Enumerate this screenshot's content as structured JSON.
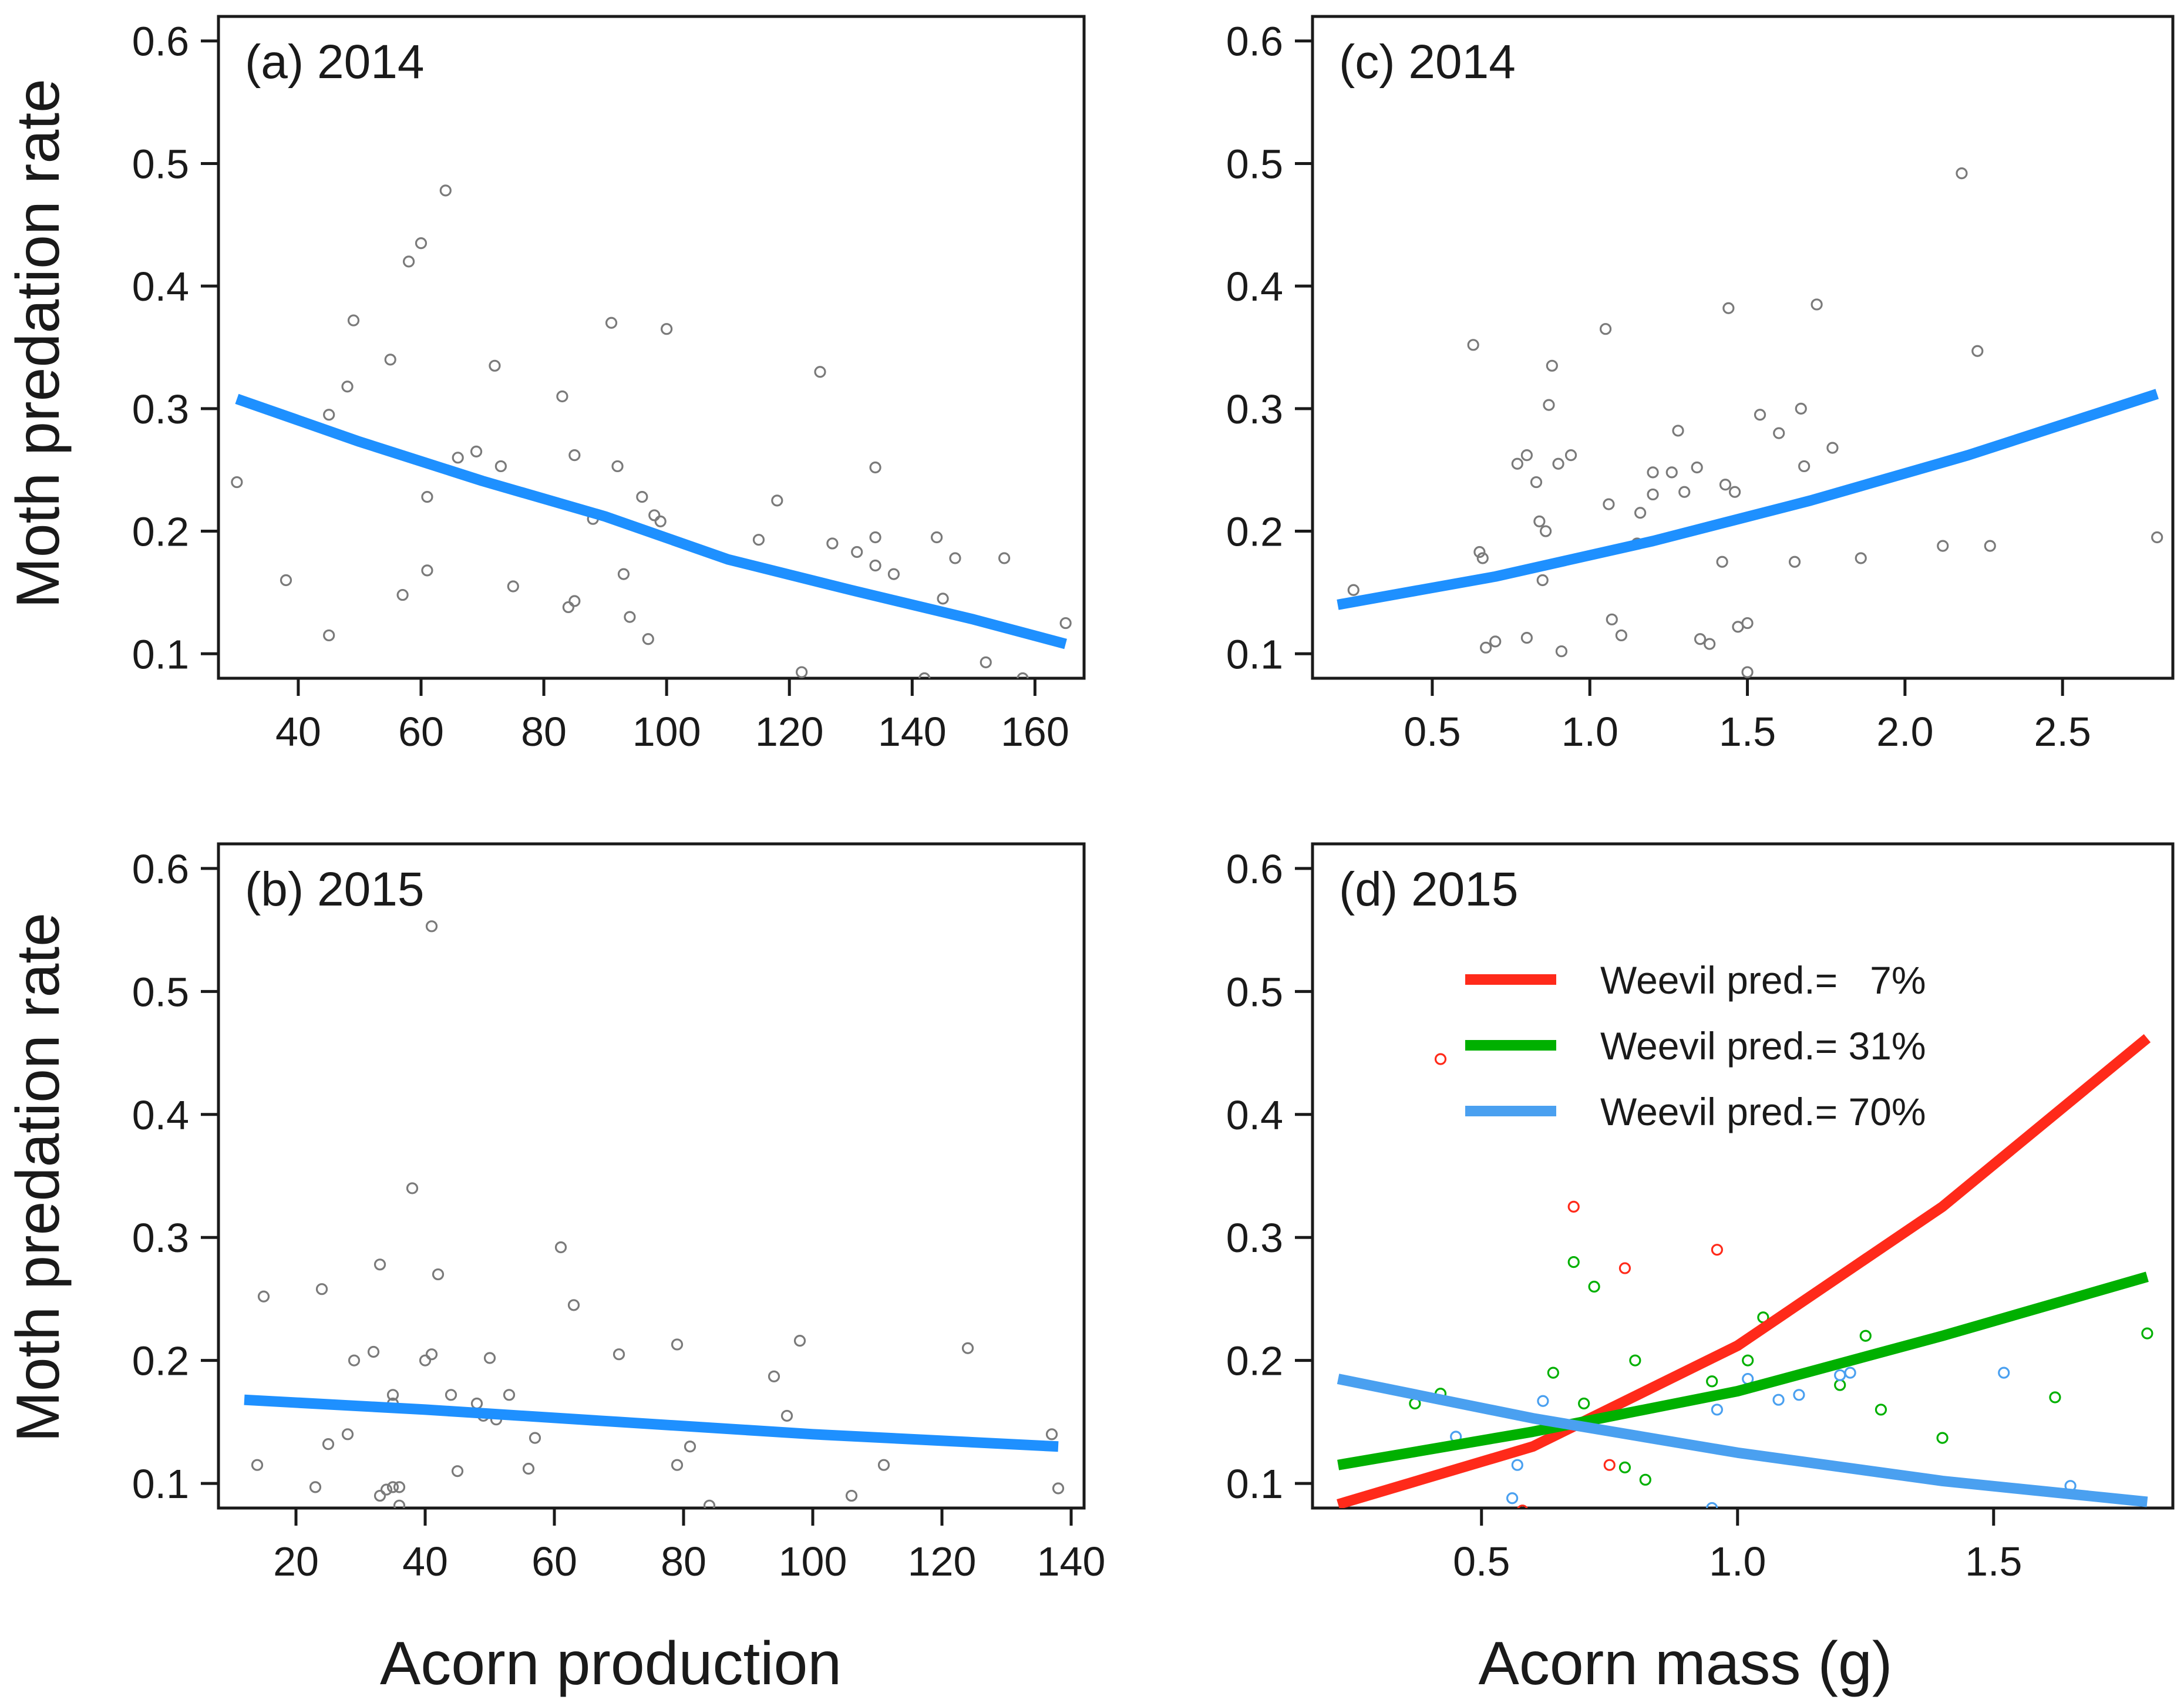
{
  "figure": {
    "shared_ylabel": "Moth predation rate",
    "xlabel_left": "Acorn production",
    "xlabel_right": "Acorn mass (g)"
  },
  "chart_data": [
    {
      "id": "a",
      "type": "scatter",
      "panel_label": "(a) 2014",
      "xlabel": "Acorn production",
      "ylabel": "Moth predation rate",
      "xlim": [
        27,
        168
      ],
      "ylim": [
        0.08,
        0.62
      ],
      "xticks": [
        40,
        60,
        80,
        100,
        120,
        140,
        160
      ],
      "yticks": [
        0.1,
        0.2,
        0.3,
        0.4,
        0.5,
        0.6
      ],
      "point_color": "#7a7a7a",
      "points": [
        [
          30,
          0.24
        ],
        [
          38,
          0.16
        ],
        [
          45,
          0.115
        ],
        [
          45,
          0.295
        ],
        [
          48,
          0.318
        ],
        [
          49,
          0.372
        ],
        [
          55,
          0.34
        ],
        [
          57,
          0.148
        ],
        [
          58,
          0.42
        ],
        [
          60,
          0.435
        ],
        [
          61,
          0.168
        ],
        [
          61,
          0.228
        ],
        [
          64,
          0.478
        ],
        [
          66,
          0.26
        ],
        [
          69,
          0.265
        ],
        [
          72,
          0.335
        ],
        [
          73,
          0.253
        ],
        [
          75,
          0.155
        ],
        [
          83,
          0.31
        ],
        [
          84,
          0.138
        ],
        [
          85,
          0.143
        ],
        [
          85,
          0.262
        ],
        [
          88,
          0.21
        ],
        [
          91,
          0.37
        ],
        [
          92,
          0.253
        ],
        [
          93,
          0.165
        ],
        [
          94,
          0.13
        ],
        [
          96,
          0.228
        ],
        [
          97,
          0.112
        ],
        [
          98,
          0.213
        ],
        [
          99,
          0.208
        ],
        [
          100,
          0.365
        ],
        [
          115,
          0.193
        ],
        [
          118,
          0.225
        ],
        [
          122,
          0.085
        ],
        [
          125,
          0.33
        ],
        [
          127,
          0.19
        ],
        [
          131,
          0.183
        ],
        [
          134,
          0.195
        ],
        [
          134,
          0.172
        ],
        [
          134,
          0.252
        ],
        [
          137,
          0.165
        ],
        [
          142,
          0.08
        ],
        [
          144,
          0.195
        ],
        [
          145,
          0.145
        ],
        [
          147,
          0.178
        ],
        [
          152,
          0.093
        ],
        [
          155,
          0.178
        ],
        [
          158,
          0.08
        ],
        [
          165,
          0.125
        ]
      ],
      "series": [
        {
          "line": [
            [
              30,
              0.308
            ],
            [
              50,
              0.273
            ],
            [
              70,
              0.241
            ],
            [
              90,
              0.212
            ],
            [
              110,
              0.177
            ],
            [
              130,
              0.152
            ],
            [
              150,
              0.128
            ],
            [
              165,
              0.108
            ]
          ],
          "color": "#1e90ff"
        }
      ]
    },
    {
      "id": "b",
      "type": "scatter",
      "panel_label": "(b) 2015",
      "xlabel": "Acorn production",
      "ylabel": "Moth predation rate",
      "xlim": [
        8,
        142
      ],
      "ylim": [
        0.08,
        0.62
      ],
      "xticks": [
        20,
        40,
        60,
        80,
        100,
        120,
        140
      ],
      "yticks": [
        0.1,
        0.2,
        0.3,
        0.4,
        0.5,
        0.6
      ],
      "point_color": "#7a7a7a",
      "points": [
        [
          14,
          0.115
        ],
        [
          15,
          0.252
        ],
        [
          23,
          0.097
        ],
        [
          24,
          0.258
        ],
        [
          25,
          0.132
        ],
        [
          28,
          0.14
        ],
        [
          29,
          0.2
        ],
        [
          32,
          0.207
        ],
        [
          33,
          0.278
        ],
        [
          33,
          0.09
        ],
        [
          34,
          0.095
        ],
        [
          35,
          0.172
        ],
        [
          35,
          0.165
        ],
        [
          35,
          0.097
        ],
        [
          36,
          0.097
        ],
        [
          36,
          0.082
        ],
        [
          38,
          0.34
        ],
        [
          40,
          0.2
        ],
        [
          41,
          0.205
        ],
        [
          41,
          0.553
        ],
        [
          42,
          0.27
        ],
        [
          44,
          0.172
        ],
        [
          45,
          0.11
        ],
        [
          48,
          0.165
        ],
        [
          49,
          0.155
        ],
        [
          50,
          0.202
        ],
        [
          51,
          0.152
        ],
        [
          53,
          0.172
        ],
        [
          56,
          0.112
        ],
        [
          57,
          0.137
        ],
        [
          61,
          0.292
        ],
        [
          63,
          0.245
        ],
        [
          70,
          0.205
        ],
        [
          79,
          0.213
        ],
        [
          79,
          0.115
        ],
        [
          81,
          0.13
        ],
        [
          84,
          0.082
        ],
        [
          94,
          0.187
        ],
        [
          96,
          0.155
        ],
        [
          98,
          0.216
        ],
        [
          106,
          0.09
        ],
        [
          111,
          0.115
        ],
        [
          124,
          0.21
        ],
        [
          137,
          0.14
        ],
        [
          138,
          0.096
        ]
      ],
      "series": [
        {
          "line": [
            [
              12,
              0.168
            ],
            [
              40,
              0.16
            ],
            [
              70,
              0.15
            ],
            [
              100,
              0.14
            ],
            [
              138,
              0.13
            ]
          ],
          "color": "#1e90ff"
        }
      ]
    },
    {
      "id": "c",
      "type": "scatter",
      "panel_label": "(c) 2014",
      "xlabel": "Acorn mass (g)",
      "ylabel": "Moth predation rate",
      "xlim": [
        0.12,
        2.85
      ],
      "ylim": [
        0.08,
        0.62
      ],
      "xticks": [
        "0.5",
        "1.0",
        "1.5",
        "2.0",
        "2.5"
      ],
      "yticks": [
        0.1,
        0.2,
        0.3,
        0.4,
        0.5,
        0.6
      ],
      "point_color": "#7a7a7a",
      "points": [
        [
          0.25,
          0.152
        ],
        [
          0.63,
          0.352
        ],
        [
          0.65,
          0.183
        ],
        [
          0.66,
          0.178
        ],
        [
          0.67,
          0.105
        ],
        [
          0.7,
          0.11
        ],
        [
          0.77,
          0.255
        ],
        [
          0.8,
          0.262
        ],
        [
          0.8,
          0.113
        ],
        [
          0.83,
          0.24
        ],
        [
          0.84,
          0.208
        ],
        [
          0.85,
          0.16
        ],
        [
          0.86,
          0.2
        ],
        [
          0.87,
          0.303
        ],
        [
          0.88,
          0.335
        ],
        [
          0.9,
          0.255
        ],
        [
          0.91,
          0.102
        ],
        [
          0.94,
          0.262
        ],
        [
          1.05,
          0.365
        ],
        [
          1.06,
          0.222
        ],
        [
          1.07,
          0.128
        ],
        [
          1.1,
          0.115
        ],
        [
          1.15,
          0.19
        ],
        [
          1.16,
          0.215
        ],
        [
          1.2,
          0.248
        ],
        [
          1.2,
          0.23
        ],
        [
          1.26,
          0.248
        ],
        [
          1.28,
          0.282
        ],
        [
          1.3,
          0.232
        ],
        [
          1.34,
          0.252
        ],
        [
          1.35,
          0.112
        ],
        [
          1.38,
          0.108
        ],
        [
          1.42,
          0.175
        ],
        [
          1.43,
          0.238
        ],
        [
          1.44,
          0.382
        ],
        [
          1.46,
          0.232
        ],
        [
          1.47,
          0.122
        ],
        [
          1.5,
          0.125
        ],
        [
          1.5,
          0.085
        ],
        [
          1.54,
          0.295
        ],
        [
          1.6,
          0.28
        ],
        [
          1.65,
          0.175
        ],
        [
          1.67,
          0.3
        ],
        [
          1.68,
          0.253
        ],
        [
          1.72,
          0.385
        ],
        [
          1.77,
          0.268
        ],
        [
          1.86,
          0.178
        ],
        [
          2.12,
          0.188
        ],
        [
          2.18,
          0.492
        ],
        [
          2.23,
          0.347
        ],
        [
          2.27,
          0.188
        ],
        [
          2.8,
          0.195
        ]
      ],
      "series": [
        {
          "line": [
            [
              0.2,
              0.14
            ],
            [
              0.7,
              0.163
            ],
            [
              1.2,
              0.192
            ],
            [
              1.7,
              0.225
            ],
            [
              2.2,
              0.262
            ],
            [
              2.8,
              0.312
            ]
          ],
          "color": "#1e90ff"
        }
      ]
    },
    {
      "id": "d",
      "type": "scatter",
      "panel_label": "(d) 2015",
      "xlabel": "Acorn mass (g)",
      "ylabel": "Moth predation rate",
      "xlim": [
        0.17,
        1.85
      ],
      "ylim": [
        0.08,
        0.62
      ],
      "xticks": [
        "0.5",
        "1.0",
        "1.5"
      ],
      "yticks": [
        0.1,
        0.2,
        0.3,
        0.4,
        0.5,
        0.6
      ],
      "legend_placement": "top",
      "series": [
        {
          "name": "Weevil pred.=   7%",
          "color": "#ff2a1a",
          "line": [
            [
              0.22,
              0.083
            ],
            [
              0.6,
              0.13
            ],
            [
              1.0,
              0.212
            ],
            [
              1.4,
              0.325
            ],
            [
              1.8,
              0.462
            ]
          ],
          "points": [
            [
              0.42,
              0.445
            ],
            [
              0.68,
              0.325
            ],
            [
              0.78,
              0.275
            ],
            [
              0.75,
              0.115
            ],
            [
              0.96,
              0.29
            ],
            [
              0.58,
              0.078
            ]
          ]
        },
        {
          "name": "Weevil pred.= 31%",
          "color": "#00b000",
          "line": [
            [
              0.22,
              0.115
            ],
            [
              0.6,
              0.142
            ],
            [
              1.0,
              0.175
            ],
            [
              1.4,
              0.22
            ],
            [
              1.8,
              0.268
            ]
          ],
          "points": [
            [
              0.37,
              0.165
            ],
            [
              0.42,
              0.173
            ],
            [
              0.64,
              0.19
            ],
            [
              0.68,
              0.28
            ],
            [
              0.7,
              0.165
            ],
            [
              0.72,
              0.26
            ],
            [
              0.78,
              0.113
            ],
            [
              0.8,
              0.2
            ],
            [
              0.82,
              0.103
            ],
            [
              1.02,
              0.2
            ],
            [
              1.05,
              0.235
            ],
            [
              1.2,
              0.18
            ],
            [
              1.25,
              0.22
            ],
            [
              1.28,
              0.16
            ],
            [
              1.4,
              0.137
            ],
            [
              1.62,
              0.17
            ],
            [
              1.8,
              0.222
            ],
            [
              0.95,
              0.183
            ]
          ]
        },
        {
          "name": "Weevil pred.= 70%",
          "color": "#4aa0f0",
          "line": [
            [
              0.22,
              0.185
            ],
            [
              0.6,
              0.153
            ],
            [
              1.0,
              0.125
            ],
            [
              1.4,
              0.102
            ],
            [
              1.8,
              0.085
            ]
          ],
          "points": [
            [
              0.45,
              0.138
            ],
            [
              0.56,
              0.088
            ],
            [
              0.57,
              0.115
            ],
            [
              0.62,
              0.167
            ],
            [
              0.95,
              0.08
            ],
            [
              0.96,
              0.16
            ],
            [
              1.02,
              0.185
            ],
            [
              1.08,
              0.168
            ],
            [
              1.12,
              0.172
            ],
            [
              1.2,
              0.188
            ],
            [
              1.22,
              0.19
            ],
            [
              1.52,
              0.19
            ],
            [
              1.65,
              0.098
            ]
          ]
        }
      ]
    }
  ]
}
